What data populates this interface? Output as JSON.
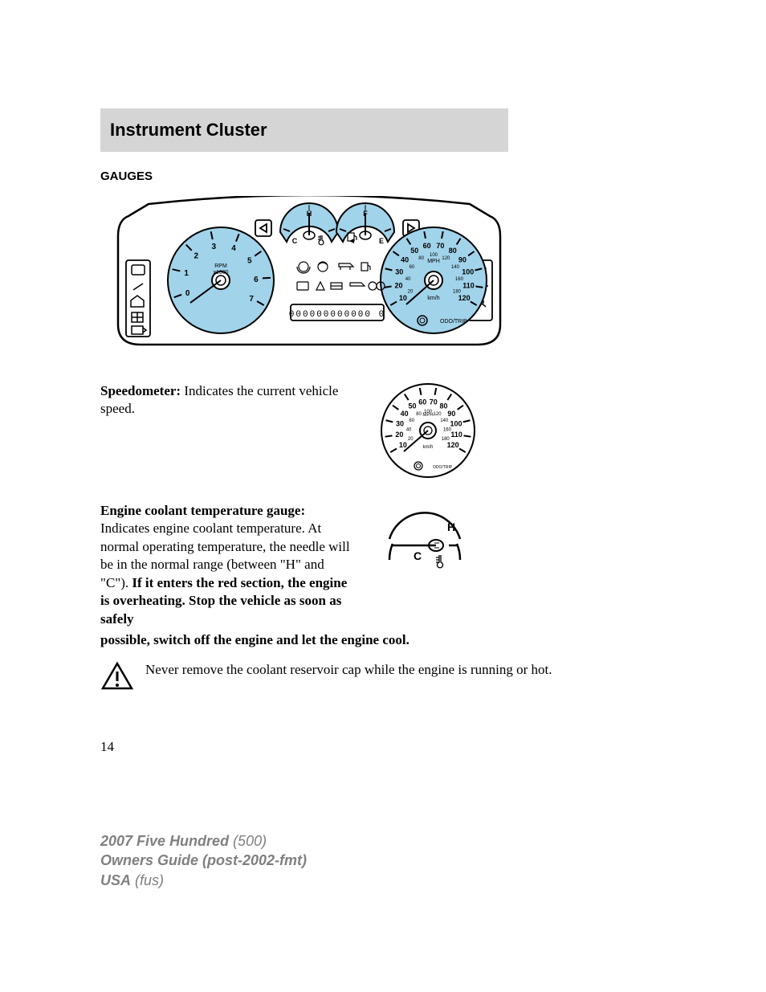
{
  "header": {
    "title": "Instrument Cluster"
  },
  "section": {
    "heading": "GAUGES"
  },
  "cluster": {
    "background": "#ffffff",
    "gauge_fill": "#a1d3ea",
    "outline": "#000000",
    "tach": {
      "label_top": "RPM",
      "label_bot": "x1000",
      "ticks": [
        "0",
        "1",
        "2",
        "3",
        "4",
        "5",
        "6",
        "7"
      ]
    },
    "speedo": {
      "unit_top": "MPH",
      "unit_bot": "km/h",
      "mph": [
        "10",
        "20",
        "30",
        "40",
        "50",
        "60",
        "70",
        "80",
        "90",
        "100",
        "110",
        "120"
      ],
      "kmh": [
        "20",
        "40",
        "60",
        "80",
        "100",
        "120",
        "140",
        "160",
        "180"
      ],
      "odo_label": "ODO/TRIP"
    },
    "temp_gauge": {
      "hot": "H",
      "cold": "C"
    },
    "fuel_gauge": {
      "full": "F",
      "empty": "E"
    },
    "odo_display": "000000000000  0",
    "left_icons": [
      "cruise",
      "wrench",
      "window",
      "grid",
      "door"
    ],
    "right_icons": [
      "service",
      "oil",
      "washer"
    ]
  },
  "speedometer_item": {
    "label": "Speedometer:",
    "text": " Indicates the current vehicle speed.",
    "fig": {
      "unit_top": "MPH",
      "unit_bot": "km/h",
      "mph": [
        "10",
        "20",
        "30",
        "40",
        "50",
        "60",
        "70",
        "80",
        "90",
        "100",
        "110",
        "120"
      ],
      "kmh": [
        "20",
        "40",
        "60",
        "80",
        "100",
        "120",
        "140",
        "160",
        "180"
      ],
      "odo_label": "ODO/TRIP"
    }
  },
  "coolant_item": {
    "label": "Engine coolant temperature gauge:",
    "text_a": " Indicates engine coolant temperature. At normal operating temperature, the needle will be in the normal range (between \"H\" and \"C\"). ",
    "bold_tail": "If it enters the red section, the engine is overheating. Stop the vehicle as soon as safely possible, switch off the engine and let the engine cool.",
    "fig": {
      "hot": "H",
      "cold": "C"
    }
  },
  "warning": {
    "text": "Never remove the coolant reservoir cap while the engine is running or hot.",
    "icon_stroke": "#000000",
    "icon_fill": "#ffffff"
  },
  "page_number": "14",
  "footer": {
    "line1_bold": "2007 Five Hundred",
    "line1_ital": " (500)",
    "line2": "Owners Guide (post-2002-fmt)",
    "line3_bold": "USA",
    "line3_ital": " (fus)"
  }
}
